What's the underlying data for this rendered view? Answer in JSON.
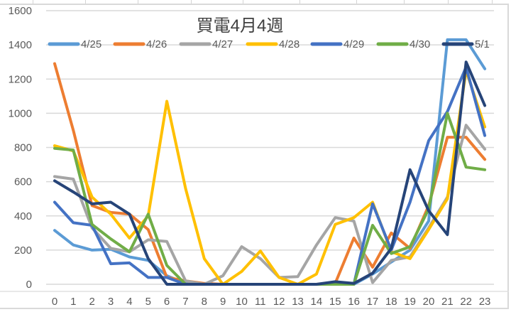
{
  "chart_data": {
    "type": "line",
    "title": "買電4月4週",
    "xlabel": "",
    "ylabel": "",
    "ylim": [
      0,
      1600
    ],
    "yticks": [
      0,
      200,
      400,
      600,
      800,
      1000,
      1200,
      1400,
      1600
    ],
    "grid": true,
    "legend_position": "top",
    "categories": [
      "0",
      "1",
      "2",
      "3",
      "4",
      "5",
      "6",
      "7",
      "8",
      "9",
      "10",
      "11",
      "12",
      "13",
      "14",
      "15",
      "16",
      "17",
      "18",
      "19",
      "20",
      "21",
      "22",
      "23"
    ],
    "series": [
      {
        "name": "4/25",
        "color": "#5B9BD5",
        "values": [
          315,
          230,
          200,
          205,
          160,
          140,
          50,
          5,
          0,
          0,
          0,
          0,
          0,
          0,
          0,
          0,
          0,
          60,
          130,
          200,
          370,
          1430,
          1430,
          1260
        ]
      },
      {
        "name": "4/26",
        "color": "#ED7D31",
        "values": [
          1290,
          900,
          460,
          420,
          410,
          320,
          40,
          20,
          5,
          0,
          0,
          0,
          0,
          0,
          0,
          5,
          270,
          100,
          300,
          210,
          460,
          860,
          860,
          730
        ]
      },
      {
        "name": "4/27",
        "color": "#A5A5A5",
        "values": [
          630,
          615,
          330,
          210,
          190,
          260,
          250,
          20,
          0,
          50,
          220,
          150,
          40,
          45,
          230,
          390,
          370,
          10,
          140,
          160,
          330,
          510,
          930,
          790
        ]
      },
      {
        "name": "4/28",
        "color": "#FFC000",
        "values": [
          810,
          780,
          510,
          410,
          270,
          400,
          1070,
          560,
          150,
          0,
          75,
          195,
          40,
          0,
          60,
          350,
          390,
          480,
          190,
          150,
          320,
          500,
          1250,
          920
        ]
      },
      {
        "name": "4/29",
        "color": "#4472C4",
        "values": [
          480,
          360,
          345,
          120,
          125,
          40,
          40,
          0,
          0,
          0,
          0,
          0,
          0,
          0,
          0,
          0,
          0,
          470,
          200,
          480,
          840,
          1010,
          1270,
          870
        ]
      },
      {
        "name": "4/30",
        "color": "#70AD47",
        "values": [
          795,
          785,
          350,
          265,
          190,
          410,
          110,
          0,
          0,
          0,
          0,
          0,
          0,
          0,
          0,
          0,
          0,
          345,
          180,
          220,
          440,
          1000,
          685,
          670
        ]
      },
      {
        "name": "5/1",
        "color": "#264478",
        "values": [
          605,
          540,
          470,
          480,
          410,
          150,
          0,
          0,
          0,
          0,
          0,
          0,
          0,
          0,
          0,
          15,
          5,
          65,
          210,
          670,
          430,
          290,
          1300,
          1045
        ]
      }
    ]
  }
}
